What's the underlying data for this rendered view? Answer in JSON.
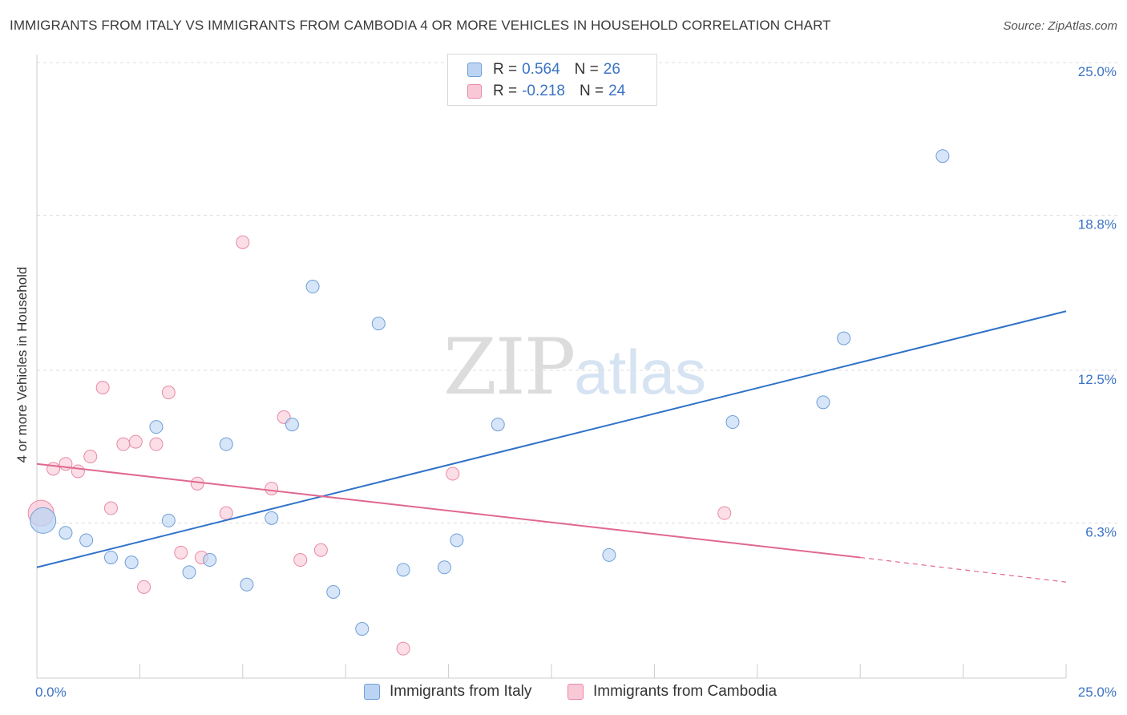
{
  "title": "IMMIGRANTS FROM ITALY VS IMMIGRANTS FROM CAMBODIA 4 OR MORE VEHICLES IN HOUSEHOLD CORRELATION CHART",
  "source": "Source: ZipAtlas.com",
  "watermark": {
    "zip": "ZIP",
    "atlas": "atlas"
  },
  "legend": {
    "rows": [
      {
        "r_label": "R =",
        "r_value": "0.564",
        "n_label": "N =",
        "n_value": "26"
      },
      {
        "r_label": "R =",
        "r_value": "-0.218",
        "n_label": "N =",
        "n_value": "24"
      }
    ]
  },
  "bottom_legend": {
    "italy": "Immigrants from Italy",
    "cambodia": "Immigrants from Cambodia"
  },
  "colors": {
    "italy_fill": "#bcd4f3",
    "italy_stroke": "#6f9fd8",
    "italy_line": "#2f72c8",
    "cambodia_fill": "#f9c8d6",
    "cambodia_stroke": "#e88aa6",
    "cambodia_line": "#e0688f",
    "grid": "#dddddd",
    "tick_label": "#3b73c4"
  },
  "chart_data": {
    "type": "scatter",
    "title": "IMMIGRANTS FROM ITALY VS IMMIGRANTS FROM CAMBODIA 4 OR MORE VEHICLES IN HOUSEHOLD CORRELATION CHART",
    "xlabel": "",
    "ylabel": "4 or more Vehicles in Household",
    "xlim": [
      0,
      25
    ],
    "ylim": [
      0,
      25
    ],
    "x_tick_labels": [
      "0.0%",
      "25.0%"
    ],
    "y_ticks": [
      {
        "value": 6.3,
        "label": "6.3%"
      },
      {
        "value": 12.5,
        "label": "12.5%"
      },
      {
        "value": 18.8,
        "label": "18.8%"
      },
      {
        "value": 25.0,
        "label": "25.0%"
      }
    ],
    "grid": true,
    "series": [
      {
        "name": "Immigrants from Italy",
        "r": 0.564,
        "n": 26,
        "trend": {
          "x0": 0,
          "y0": 4.5,
          "x1": 25,
          "y1": 14.9
        },
        "points": [
          {
            "x": 0.15,
            "y": 6.4,
            "big": true
          },
          {
            "x": 0.7,
            "y": 5.9
          },
          {
            "x": 1.2,
            "y": 5.6
          },
          {
            "x": 1.8,
            "y": 4.9
          },
          {
            "x": 2.3,
            "y": 4.7
          },
          {
            "x": 2.9,
            "y": 10.2
          },
          {
            "x": 3.2,
            "y": 6.4
          },
          {
            "x": 3.7,
            "y": 4.3
          },
          {
            "x": 4.2,
            "y": 4.8
          },
          {
            "x": 4.6,
            "y": 9.5
          },
          {
            "x": 5.1,
            "y": 3.8
          },
          {
            "x": 5.7,
            "y": 6.5
          },
          {
            "x": 6.2,
            "y": 10.3
          },
          {
            "x": 6.7,
            "y": 15.9
          },
          {
            "x": 7.2,
            "y": 3.5
          },
          {
            "x": 7.9,
            "y": 2.0
          },
          {
            "x": 8.3,
            "y": 14.4
          },
          {
            "x": 8.9,
            "y": 4.4
          },
          {
            "x": 9.9,
            "y": 4.5
          },
          {
            "x": 10.2,
            "y": 5.6
          },
          {
            "x": 11.2,
            "y": 10.3
          },
          {
            "x": 13.9,
            "y": 5.0
          },
          {
            "x": 16.9,
            "y": 10.4
          },
          {
            "x": 19.1,
            "y": 11.2
          },
          {
            "x": 19.6,
            "y": 13.8
          },
          {
            "x": 22.0,
            "y": 21.2
          }
        ]
      },
      {
        "name": "Immigrants from Cambodia",
        "r": -0.218,
        "n": 24,
        "trend": {
          "x0": 0,
          "y0": 8.7,
          "x1": 20.0,
          "y1": 4.9,
          "dash_x1": 25,
          "dash_y1": 3.9
        },
        "points": [
          {
            "x": 0.1,
            "y": 6.7,
            "big": true
          },
          {
            "x": 0.4,
            "y": 8.5
          },
          {
            "x": 0.7,
            "y": 8.7
          },
          {
            "x": 1.0,
            "y": 8.4
          },
          {
            "x": 1.3,
            "y": 9.0
          },
          {
            "x": 1.6,
            "y": 11.8
          },
          {
            "x": 1.8,
            "y": 6.9
          },
          {
            "x": 2.1,
            "y": 9.5
          },
          {
            "x": 2.4,
            "y": 9.6
          },
          {
            "x": 2.6,
            "y": 3.7
          },
          {
            "x": 2.9,
            "y": 9.5
          },
          {
            "x": 3.2,
            "y": 11.6
          },
          {
            "x": 3.5,
            "y": 5.1
          },
          {
            "x": 3.9,
            "y": 7.9
          },
          {
            "x": 4.0,
            "y": 4.9
          },
          {
            "x": 4.6,
            "y": 6.7
          },
          {
            "x": 5.0,
            "y": 17.7
          },
          {
            "x": 5.7,
            "y": 7.7
          },
          {
            "x": 6.0,
            "y": 10.6
          },
          {
            "x": 6.4,
            "y": 4.8
          },
          {
            "x": 6.9,
            "y": 5.2
          },
          {
            "x": 8.9,
            "y": 1.2
          },
          {
            "x": 10.1,
            "y": 8.3
          },
          {
            "x": 16.7,
            "y": 6.7
          }
        ]
      }
    ]
  }
}
